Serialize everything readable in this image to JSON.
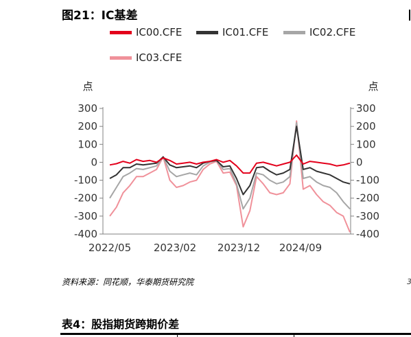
{
  "figure": {
    "title": "图21：IC基差",
    "source": "资料来源：同花顺，华泰期货研究院"
  },
  "table": {
    "title": "表4：股指期货跨期价差"
  },
  "colors": {
    "IC00": "#e3001b",
    "IC01": "#333333",
    "IC02": "#a6a6a6",
    "IC03": "#f0919a",
    "axis": "#808080"
  },
  "chart_data": {
    "type": "line",
    "title": "",
    "ylabel_left": "点",
    "ylabel_right": "点",
    "ylim": [
      -400,
      300
    ],
    "yticks": [
      300,
      200,
      100,
      0,
      -100,
      -200,
      -300,
      -400
    ],
    "xtick_labels": [
      "2022/05",
      "2023/02",
      "2023/12",
      "2024/09"
    ],
    "xlim": [
      "2022/05",
      "2025/05"
    ],
    "legend": [
      "IC00.CFE",
      "IC01.CFE",
      "IC02.CFE",
      "IC03.CFE"
    ],
    "legend_placement": "top",
    "grid": false,
    "x": [
      "2022/05",
      "2022/06",
      "2022/07",
      "2022/08",
      "2022/09",
      "2022/10",
      "2022/11",
      "2022/12",
      "2023/01",
      "2023/02",
      "2023/03",
      "2023/04",
      "2023/05",
      "2023/06",
      "2023/07",
      "2023/08",
      "2023/09",
      "2023/10",
      "2023/11",
      "2023/12",
      "2024/01",
      "2024/02",
      "2024/03",
      "2024/04",
      "2024/05",
      "2024/06",
      "2024/07",
      "2024/08",
      "2024/09",
      "2024/10",
      "2024/11",
      "2024/12",
      "2025/01",
      "2025/02",
      "2025/03",
      "2025/04",
      "2025/05"
    ],
    "series": [
      {
        "name": "IC00.CFE",
        "values": [
          -15,
          -8,
          5,
          -5,
          15,
          5,
          10,
          0,
          25,
          10,
          -10,
          -5,
          0,
          -10,
          0,
          5,
          15,
          0,
          10,
          -20,
          -60,
          -60,
          -5,
          0,
          -10,
          -20,
          -10,
          0,
          40,
          -10,
          5,
          0,
          -5,
          -10,
          -20,
          -15,
          -5
        ]
      },
      {
        "name": "IC01.CFE",
        "values": [
          -90,
          -70,
          -30,
          -30,
          -10,
          -15,
          -10,
          -5,
          30,
          -15,
          -30,
          -25,
          -20,
          -30,
          -5,
          5,
          10,
          -25,
          -20,
          -90,
          -180,
          -130,
          -30,
          -25,
          -50,
          -70,
          -60,
          -40,
          200,
          -40,
          -30,
          -50,
          -60,
          -70,
          -90,
          -110,
          -120
        ]
      },
      {
        "name": "IC02.CFE",
        "values": [
          -200,
          -140,
          -80,
          -60,
          -35,
          -40,
          -30,
          -20,
          30,
          -50,
          -80,
          -70,
          -60,
          -70,
          -20,
          0,
          10,
          -40,
          -35,
          -120,
          -260,
          -200,
          -60,
          -70,
          -100,
          -120,
          -110,
          -80,
          220,
          -90,
          -80,
          -110,
          -130,
          -140,
          -170,
          -220,
          -260
        ]
      },
      {
        "name": "IC03.CFE",
        "values": [
          -300,
          -250,
          -170,
          -130,
          -80,
          -80,
          -60,
          -40,
          30,
          -100,
          -140,
          -130,
          -110,
          -100,
          -40,
          -10,
          5,
          -60,
          -55,
          -130,
          -360,
          -270,
          -80,
          -120,
          -170,
          -180,
          -170,
          -120,
          230,
          -150,
          -130,
          -180,
          -220,
          -240,
          -280,
          -300,
          -390
        ]
      }
    ]
  }
}
